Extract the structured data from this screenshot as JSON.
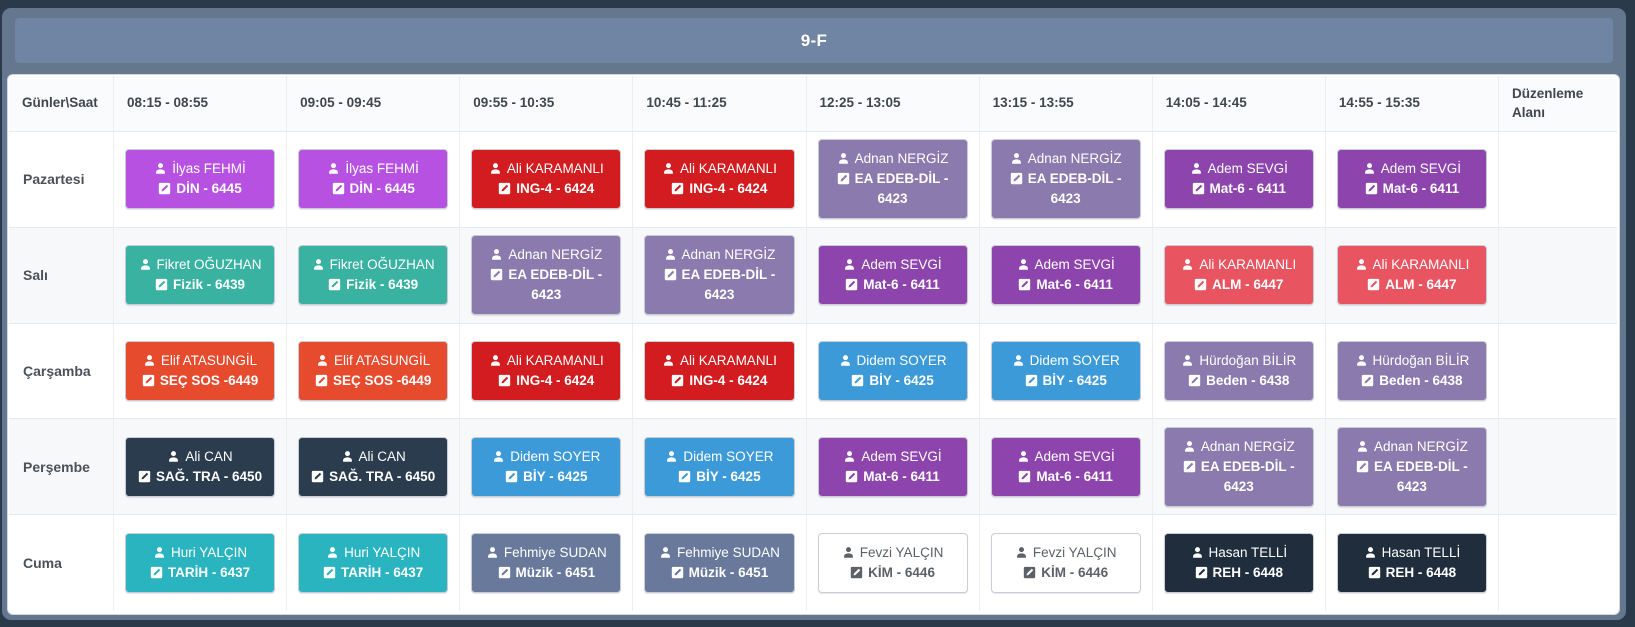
{
  "title": "9-F",
  "theme": {
    "page_bg": "#2b3a4b",
    "panel_bg": "#64778f",
    "bar_bg": "#7084a3"
  },
  "palette": {
    "violet": {
      "bg": "#b751e2",
      "fg": "#ffffff"
    },
    "red": {
      "bg": "#d21c1f",
      "fg": "#ffffff"
    },
    "mutedPurple": {
      "bg": "#8b7aae",
      "fg": "#ffffff"
    },
    "purple": {
      "bg": "#8e44ad",
      "fg": "#ffffff"
    },
    "teal": {
      "bg": "#39b2a1",
      "fg": "#ffffff"
    },
    "softRed": {
      "bg": "#e85460",
      "fg": "#ffffff"
    },
    "tomato": {
      "bg": "#e74b2e",
      "fg": "#ffffff"
    },
    "blue": {
      "bg": "#3d9ad9",
      "fg": "#ffffff"
    },
    "darkNavy": {
      "bg": "#2b3c4e",
      "fg": "#ffffff"
    },
    "cyanTeal": {
      "bg": "#2ab4bf",
      "fg": "#ffffff"
    },
    "slateBlue": {
      "bg": "#68799c",
      "fg": "#ffffff"
    },
    "whiteCard": {
      "bg": "#ffffff",
      "fg": "#5c6167",
      "border": "#c9ced6"
    },
    "darkest": {
      "bg": "#1f2d3d",
      "fg": "#ffffff"
    }
  },
  "table": {
    "corner_header": "Günler\\Saat",
    "time_slots": [
      "08:15 - 08:55",
      "09:05 - 09:45",
      "09:55 - 10:35",
      "10:45 - 11:25",
      "12:25 - 13:05",
      "13:15 - 13:55",
      "14:05 - 14:45",
      "14:55 - 15:35"
    ],
    "edit_column_header": "Düzenleme Alanı",
    "days": [
      {
        "label": "Pazartesi",
        "lessons": [
          {
            "teacher": "İlyas FEHMİ",
            "course": "DİN - 6445",
            "color": "violet"
          },
          {
            "teacher": "İlyas FEHMİ",
            "course": "DİN - 6445",
            "color": "violet"
          },
          {
            "teacher": "Ali KARAMANLI",
            "course": "ING-4 - 6424",
            "color": "red"
          },
          {
            "teacher": "Ali KARAMANLI",
            "course": "ING-4 - 6424",
            "color": "red"
          },
          {
            "teacher": "Adnan NERGİZ",
            "course": "EA EDEB-DİL - 6423",
            "color": "mutedPurple"
          },
          {
            "teacher": "Adnan NERGİZ",
            "course": "EA EDEB-DİL - 6423",
            "color": "mutedPurple"
          },
          {
            "teacher": "Adem SEVGİ",
            "course": "Mat-6 - 6411",
            "color": "purple"
          },
          {
            "teacher": "Adem SEVGİ",
            "course": "Mat-6 - 6411",
            "color": "purple"
          }
        ]
      },
      {
        "label": "Salı",
        "lessons": [
          {
            "teacher": "Fikret OĞUZHAN",
            "course": "Fizik - 6439",
            "color": "teal"
          },
          {
            "teacher": "Fikret OĞUZHAN",
            "course": "Fizik - 6439",
            "color": "teal"
          },
          {
            "teacher": "Adnan NERGİZ",
            "course": "EA EDEB-DİL - 6423",
            "color": "mutedPurple"
          },
          {
            "teacher": "Adnan NERGİZ",
            "course": "EA EDEB-DİL - 6423",
            "color": "mutedPurple"
          },
          {
            "teacher": "Adem SEVGİ",
            "course": "Mat-6 - 6411",
            "color": "purple"
          },
          {
            "teacher": "Adem SEVGİ",
            "course": "Mat-6 - 6411",
            "color": "purple"
          },
          {
            "teacher": "Ali KARAMANLI",
            "course": "ALM - 6447",
            "color": "softRed"
          },
          {
            "teacher": "Ali KARAMANLI",
            "course": "ALM - 6447",
            "color": "softRed"
          }
        ]
      },
      {
        "label": "Çarşamba",
        "lessons": [
          {
            "teacher": "Elif ATASUNGİL",
            "course": "SEÇ SOS -6449",
            "color": "tomato"
          },
          {
            "teacher": "Elif ATASUNGİL",
            "course": "SEÇ SOS -6449",
            "color": "tomato"
          },
          {
            "teacher": "Ali KARAMANLI",
            "course": "ING-4 - 6424",
            "color": "red"
          },
          {
            "teacher": "Ali KARAMANLI",
            "course": "ING-4 - 6424",
            "color": "red"
          },
          {
            "teacher": "Didem SOYER",
            "course": "BİY - 6425",
            "color": "blue"
          },
          {
            "teacher": "Didem SOYER",
            "course": "BİY - 6425",
            "color": "blue"
          },
          {
            "teacher": "Hürdoğan BİLİR",
            "course": "Beden - 6438",
            "color": "mutedPurple"
          },
          {
            "teacher": "Hürdoğan BİLİR",
            "course": "Beden - 6438",
            "color": "mutedPurple"
          }
        ]
      },
      {
        "label": "Perşembe",
        "lessons": [
          {
            "teacher": "Ali CAN",
            "course": "SAĞ. TRA - 6450",
            "color": "darkNavy"
          },
          {
            "teacher": "Ali CAN",
            "course": "SAĞ. TRA - 6450",
            "color": "darkNavy"
          },
          {
            "teacher": "Didem SOYER",
            "course": "BİY - 6425",
            "color": "blue"
          },
          {
            "teacher": "Didem SOYER",
            "course": "BİY - 6425",
            "color": "blue"
          },
          {
            "teacher": "Adem SEVGİ",
            "course": "Mat-6 - 6411",
            "color": "purple"
          },
          {
            "teacher": "Adem SEVGİ",
            "course": "Mat-6 - 6411",
            "color": "purple"
          },
          {
            "teacher": "Adnan NERGİZ",
            "course": "EA EDEB-DİL - 6423",
            "color": "mutedPurple"
          },
          {
            "teacher": "Adnan NERGİZ",
            "course": "EA EDEB-DİL - 6423",
            "color": "mutedPurple"
          }
        ]
      },
      {
        "label": "Cuma",
        "lessons": [
          {
            "teacher": "Huri YALÇIN",
            "course": "TARİH - 6437",
            "color": "cyanTeal"
          },
          {
            "teacher": "Huri YALÇIN",
            "course": "TARİH - 6437",
            "color": "cyanTeal"
          },
          {
            "teacher": "Fehmiye SUDAN",
            "course": "Müzik - 6451",
            "color": "slateBlue"
          },
          {
            "teacher": "Fehmiye SUDAN",
            "course": "Müzik - 6451",
            "color": "slateBlue"
          },
          {
            "teacher": "Fevzi YALÇIN",
            "course": "KİM - 6446",
            "color": "whiteCard"
          },
          {
            "teacher": "Fevzi YALÇIN",
            "course": "KİM - 6446",
            "color": "whiteCard"
          },
          {
            "teacher": "Hasan TELLİ",
            "course": "REH - 6448",
            "color": "darkest"
          },
          {
            "teacher": "Hasan TELLİ",
            "course": "REH - 6448",
            "color": "darkest"
          }
        ]
      }
    ]
  }
}
